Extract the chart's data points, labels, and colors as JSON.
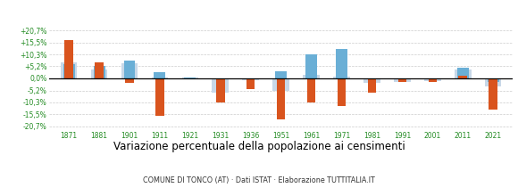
{
  "years": [
    1871,
    1881,
    1901,
    1911,
    1921,
    1931,
    1936,
    1951,
    1961,
    1971,
    1981,
    1991,
    2001,
    2011,
    2021
  ],
  "tonco": [
    16.5,
    7.0,
    -2.0,
    -16.0,
    -0.5,
    -10.5,
    -4.5,
    -17.5,
    -10.5,
    -12.0,
    -6.0,
    -1.5,
    -1.5,
    1.0,
    -13.5
  ],
  "provincia_at": [
    7.0,
    4.0,
    6.5,
    0.5,
    0.3,
    -6.0,
    -0.8,
    -5.5,
    1.5,
    0.8,
    -2.0,
    -1.5,
    -1.0,
    4.0,
    -3.5
  ],
  "piemonte": [
    6.0,
    5.5,
    7.5,
    2.5,
    0.5,
    -0.5,
    0.0,
    3.0,
    10.5,
    12.5,
    -0.5,
    -0.5,
    -0.5,
    4.5,
    -1.5
  ],
  "tonco_color": "#d9541e",
  "provincia_color": "#c8d8e8",
  "piemonte_color": "#6aafd6",
  "title": "Variazione percentuale della popolazione ai censimenti",
  "subtitle": "COMUNE DI TONCO (AT) · Dati ISTAT · Elaborazione TUTTITALIA.IT",
  "yticks": [
    -20.7,
    -15.5,
    -10.3,
    -5.2,
    0.0,
    5.2,
    10.3,
    15.5,
    20.7
  ],
  "ytick_labels": [
    "-20,7%",
    "-15,5%",
    "-10,3%",
    "-5,2%",
    "0,0%",
    "+5,2%",
    "+10,3%",
    "+15,5%",
    "+20,7%"
  ],
  "ylim": [
    -22,
    22
  ],
  "background_color": "#ffffff",
  "grid_color": "#cccccc",
  "title_fontsize": 8.5,
  "subtitle_fontsize": 5.8,
  "tick_fontsize": 5.5,
  "legend_fontsize": 7.0,
  "axis_label_color": "#228B22"
}
